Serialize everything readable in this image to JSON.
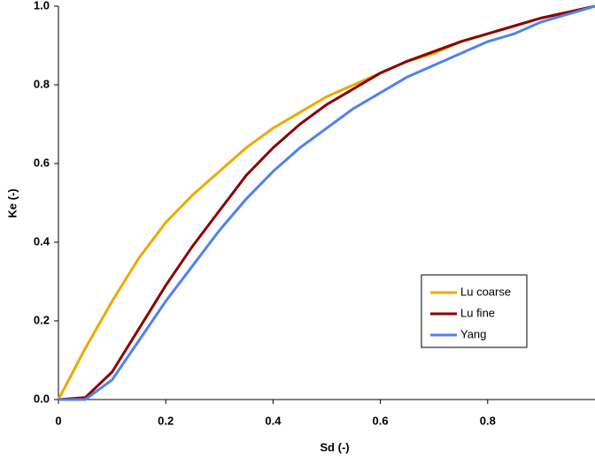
{
  "chart_data": {
    "type": "line",
    "x_label": "Sd (-)",
    "y_label": "Ke (-)",
    "x": [
      0,
      0.05,
      0.1,
      0.15,
      0.2,
      0.25,
      0.3,
      0.35,
      0.4,
      0.45,
      0.5,
      0.55,
      0.6,
      0.65,
      0.7,
      0.75,
      0.8,
      0.85,
      0.9,
      0.95,
      1.0
    ],
    "series": [
      {
        "name": "Lu coarse",
        "color": "#f0a800",
        "values": [
          0,
          0.13,
          0.25,
          0.36,
          0.45,
          0.52,
          0.58,
          0.64,
          0.69,
          0.73,
          0.77,
          0.8,
          0.83,
          0.86,
          0.88,
          0.91,
          0.93,
          0.95,
          0.97,
          0.985,
          1.0
        ]
      },
      {
        "name": "Lu fine",
        "color": "#8b0000",
        "values": [
          0,
          0.005,
          0.07,
          0.18,
          0.29,
          0.39,
          0.48,
          0.57,
          0.64,
          0.7,
          0.75,
          0.79,
          0.83,
          0.86,
          0.885,
          0.91,
          0.93,
          0.95,
          0.97,
          0.985,
          1.0
        ]
      },
      {
        "name": "Yang",
        "color": "#4f81f0",
        "values": [
          0,
          0,
          0.05,
          0.15,
          0.25,
          0.34,
          0.43,
          0.51,
          0.58,
          0.64,
          0.69,
          0.74,
          0.78,
          0.82,
          0.85,
          0.88,
          0.91,
          0.93,
          0.96,
          0.98,
          1.0
        ]
      }
    ],
    "xlim": [
      0,
      1
    ],
    "ylim": [
      0,
      1
    ],
    "xticks": [
      0,
      0.2,
      0.4,
      0.6,
      0.8
    ],
    "yticks": [
      {
        "value": 0,
        "label": "0.0"
      },
      0.2,
      0.4,
      0.6,
      0.8,
      {
        "value": 1,
        "label": "1.0"
      }
    ],
    "legend": "right"
  }
}
